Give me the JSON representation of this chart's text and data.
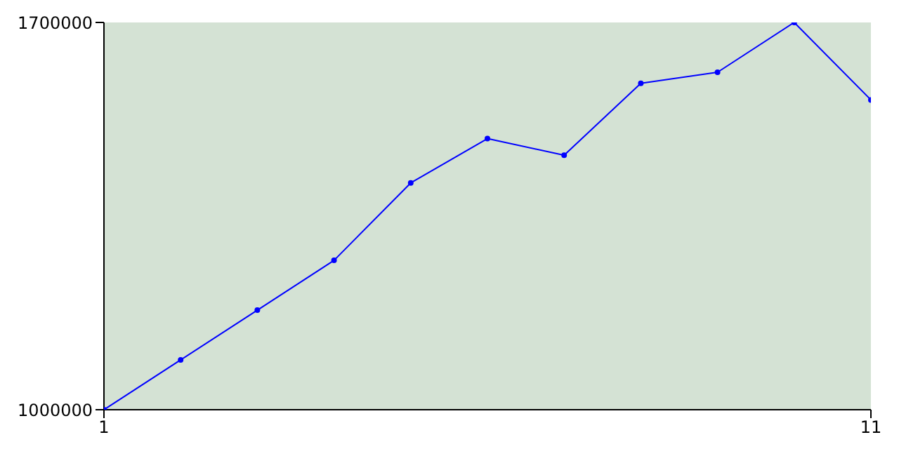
{
  "chart_data": {
    "type": "line",
    "x": [
      1,
      2,
      3,
      4,
      5,
      6,
      7,
      8,
      9,
      10,
      11
    ],
    "series": [
      {
        "color": "#0000ff",
        "values": [
          1000000,
          1090000,
          1180000,
          1270000,
          1410000,
          1490000,
          1460000,
          1590000,
          1610000,
          1700000,
          1560000
        ]
      }
    ],
    "xlim": [
      1,
      11
    ],
    "xticks": [
      1,
      11
    ],
    "ylim": [
      1000000,
      1700000
    ],
    "yticks": [
      1000000,
      1700000
    ],
    "grid": false,
    "legend": false,
    "marker": "circle",
    "line_style": "solid"
  }
}
